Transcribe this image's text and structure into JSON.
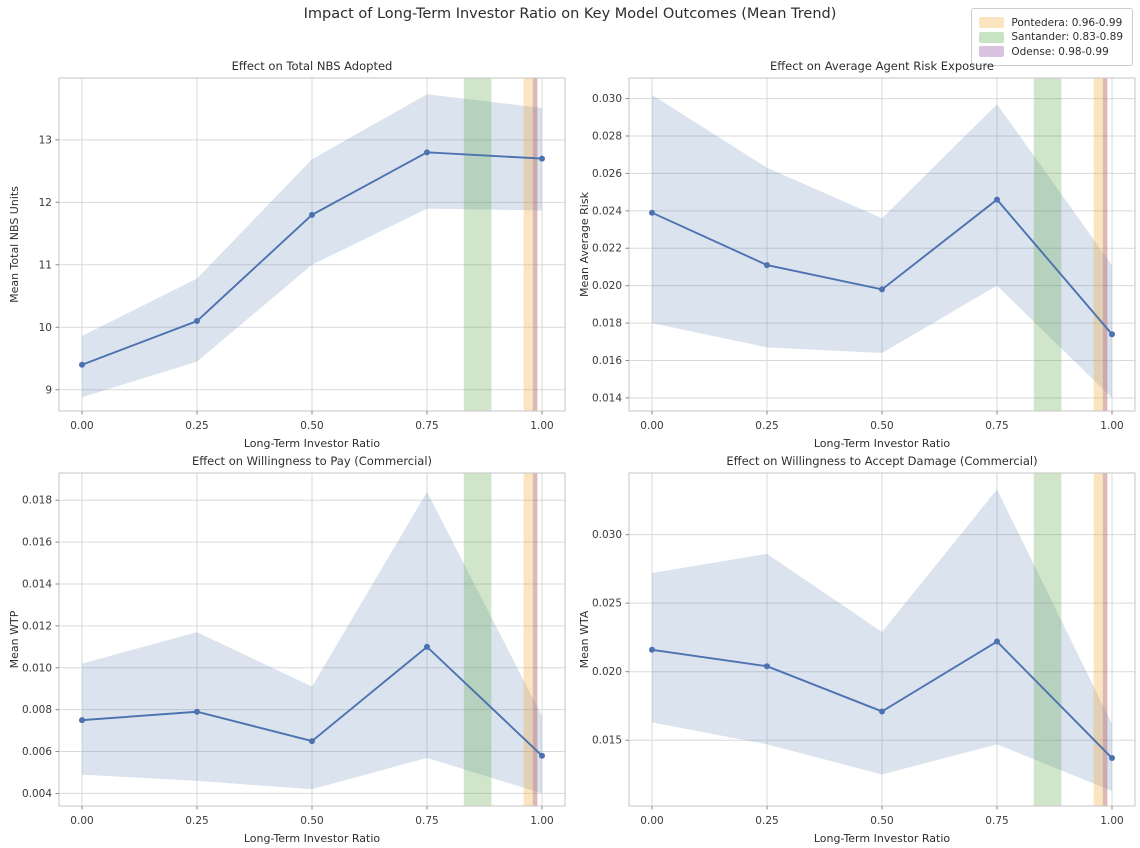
{
  "figure": {
    "title": "Impact of Long-Term Investor Ratio on Key Model Outcomes (Mean Trend)"
  },
  "legend": {
    "entries": [
      {
        "label": "Pontedera: 0.96-0.99",
        "swatch_color": "#fbe5c1",
        "span_color": "rgba(243,166,48,0.30)",
        "range": [
          0.96,
          0.99
        ]
      },
      {
        "label": "Santander: 0.83-0.89",
        "swatch_color": "#c8e4c5",
        "span_color": "rgba(100,168,78,0.30)",
        "range": [
          0.83,
          0.89
        ]
      },
      {
        "label": "Odense: 0.98-0.99",
        "swatch_color": "#dac3e1",
        "span_color": "rgba(148,84,159,0.30)",
        "range": [
          0.98,
          0.99
        ]
      }
    ]
  },
  "style": {
    "line_color": "#4c72b0",
    "marker_color": "#4c72b0",
    "ci_fill": "rgba(76,114,176,0.20)",
    "grid_color": "#d9d9d9",
    "spine_color": "#c6c6c6",
    "tick_color": "#8a8a8a",
    "text_color": "#2e2e2e",
    "tick_label_color": "#3a3a3a"
  },
  "chart_data": [
    {
      "type": "line",
      "title": "Effect on Total NBS Adopted",
      "xlabel": "Long-Term Investor Ratio",
      "ylabel": "Mean Total NBS Units",
      "x": [
        0.0,
        0.25,
        0.5,
        0.75,
        1.0
      ],
      "xtick_labels": [
        "0.00",
        "0.25",
        "0.50",
        "0.75",
        "1.00"
      ],
      "y": [
        9.4,
        10.1,
        11.8,
        12.8,
        12.7
      ],
      "ci_lower": [
        8.88,
        9.45,
        11.0,
        11.9,
        11.87
      ],
      "ci_upper": [
        9.86,
        10.78,
        12.69,
        13.73,
        13.51
      ],
      "xlim": [
        -0.05,
        1.05
      ],
      "ylim": [
        8.66,
        13.99
      ],
      "yticks": [
        9,
        10,
        11,
        12,
        13
      ],
      "ytick_labels": [
        "9",
        "10",
        "11",
        "12",
        "13"
      ],
      "grid": true,
      "legend_position": "none"
    },
    {
      "type": "line",
      "title": "Effect on Average Agent Risk Exposure",
      "xlabel": "Long-Term Investor Ratio",
      "ylabel": "Mean Average Risk",
      "x": [
        0.0,
        0.25,
        0.5,
        0.75,
        1.0
      ],
      "xtick_labels": [
        "0.00",
        "0.25",
        "0.50",
        "0.75",
        "1.00"
      ],
      "y": [
        0.0239,
        0.0211,
        0.0198,
        0.0246,
        0.0174
      ],
      "ci_lower": [
        0.018,
        0.0167,
        0.0164,
        0.02,
        0.014
      ],
      "ci_upper": [
        0.0302,
        0.0263,
        0.0236,
        0.0297,
        0.0211
      ],
      "xlim": [
        -0.05,
        1.05
      ],
      "ylim": [
        0.0133,
        0.0311
      ],
      "yticks": [
        0.014,
        0.016,
        0.018,
        0.02,
        0.022,
        0.024,
        0.026,
        0.028,
        0.03
      ],
      "ytick_labels": [
        "0.014",
        "0.016",
        "0.018",
        "0.020",
        "0.022",
        "0.024",
        "0.026",
        "0.028",
        "0.030"
      ],
      "grid": true,
      "legend_position": "none"
    },
    {
      "type": "line",
      "title": "Effect on Willingness to Pay (Commercial)",
      "xlabel": "Long-Term Investor Ratio",
      "ylabel": "Mean WTP",
      "x": [
        0.0,
        0.25,
        0.5,
        0.75,
        1.0
      ],
      "xtick_labels": [
        "0.00",
        "0.25",
        "0.50",
        "0.75",
        "1.00"
      ],
      "y": [
        0.0075,
        0.0079,
        0.0065,
        0.011,
        0.0058
      ],
      "ci_lower": [
        0.0049,
        0.0046,
        0.0042,
        0.0057,
        0.004
      ],
      "ci_upper": [
        0.0102,
        0.0117,
        0.0091,
        0.0184,
        0.0077
      ],
      "xlim": [
        -0.05,
        1.05
      ],
      "ylim": [
        0.0034,
        0.0193
      ],
      "yticks": [
        0.004,
        0.006,
        0.008,
        0.01,
        0.012,
        0.014,
        0.016,
        0.018
      ],
      "ytick_labels": [
        "0.004",
        "0.006",
        "0.008",
        "0.010",
        "0.012",
        "0.014",
        "0.016",
        "0.018"
      ],
      "grid": true,
      "legend_position": "none"
    },
    {
      "type": "line",
      "title": "Effect on Willingness to Accept Damage (Commercial)",
      "xlabel": "Long-Term Investor Ratio",
      "ylabel": "Mean WTA",
      "x": [
        0.0,
        0.25,
        0.5,
        0.75,
        1.0
      ],
      "xtick_labels": [
        "0.00",
        "0.25",
        "0.50",
        "0.75",
        "1.00"
      ],
      "y": [
        0.0216,
        0.0204,
        0.0171,
        0.0222,
        0.0137
      ],
      "ci_lower": [
        0.0163,
        0.0147,
        0.0125,
        0.0147,
        0.0113
      ],
      "ci_upper": [
        0.0272,
        0.0286,
        0.0229,
        0.0333,
        0.0162
      ],
      "xlim": [
        -0.05,
        1.05
      ],
      "ylim": [
        0.0102,
        0.0345
      ],
      "yticks": [
        0.015,
        0.02,
        0.025,
        0.03
      ],
      "ytick_labels": [
        "0.015",
        "0.020",
        "0.025",
        "0.030"
      ],
      "grid": true,
      "legend_position": "none"
    }
  ]
}
